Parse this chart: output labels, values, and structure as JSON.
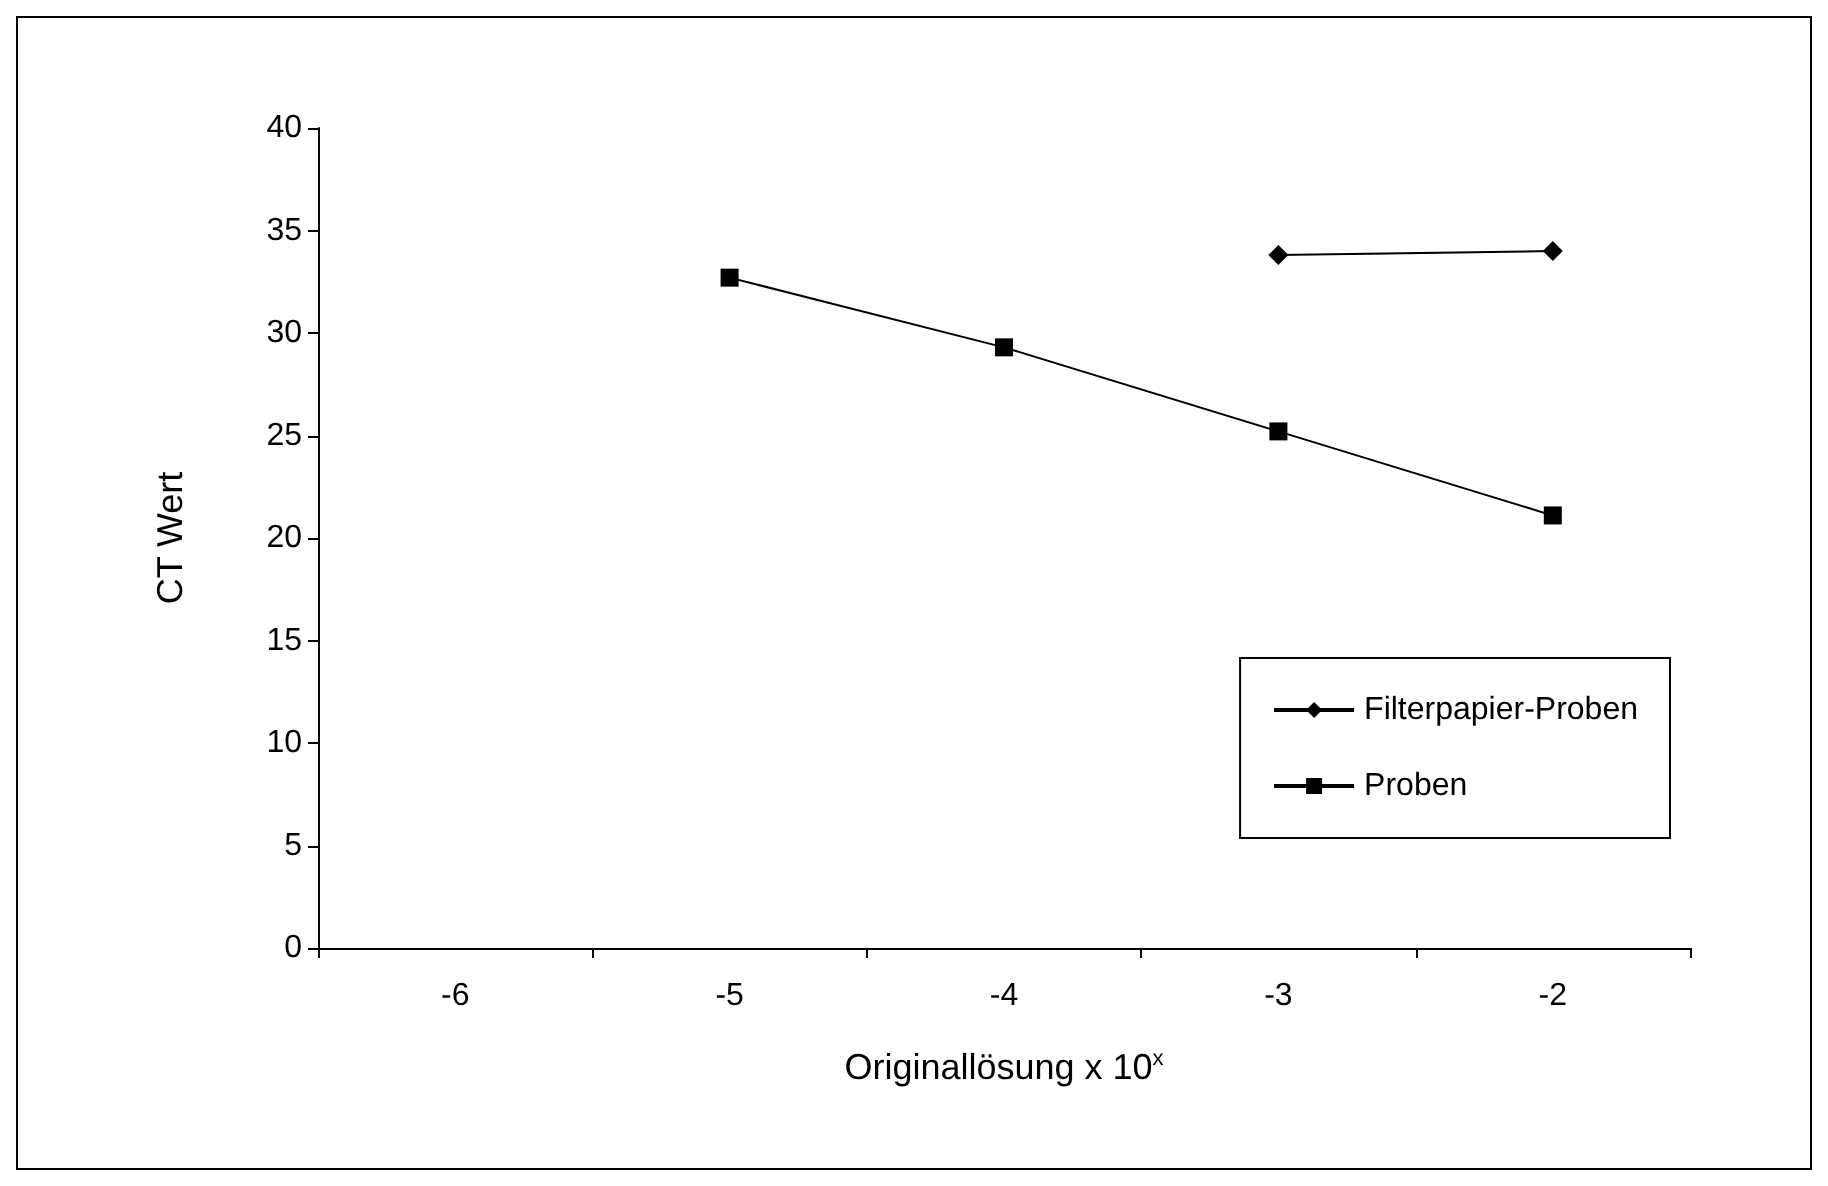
{
  "chart_data": {
    "type": "line",
    "xlabel": "Originallösung x 10$^{x}$",
    "ylabel": "CT Wert",
    "categories": [
      "-6",
      "-5",
      "-4",
      "-3",
      "-2"
    ],
    "series": [
      {
        "name": "Filterpapier-Proben",
        "color": "#000000",
        "marker": "diamond",
        "values": [
          null,
          null,
          null,
          33.8,
          34.0
        ]
      },
      {
        "name": "Proben",
        "color": "#000000",
        "marker": "square",
        "values": [
          null,
          32.7,
          29.3,
          25.2,
          21.1
        ]
      }
    ],
    "ylim": [
      0,
      40
    ],
    "yticks": [
      0,
      5,
      10,
      15,
      20,
      25,
      30,
      35,
      40
    ],
    "grid": false,
    "legend": "bottom right",
    "line_style": "solid"
  }
}
